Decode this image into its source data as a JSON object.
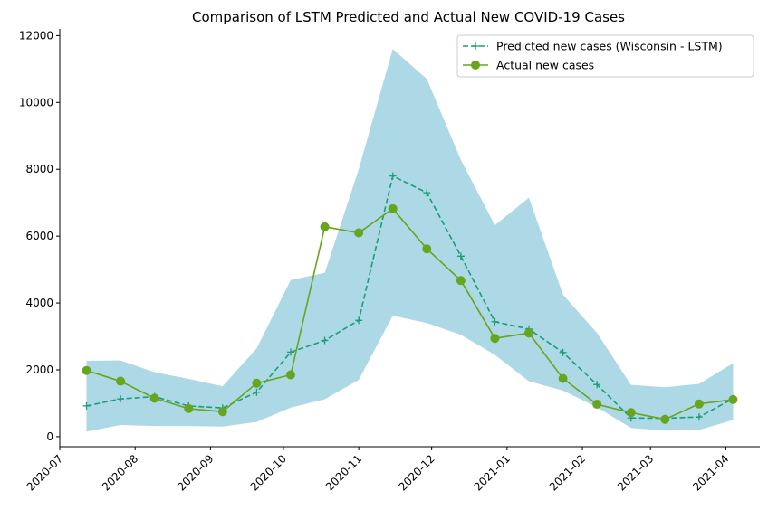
{
  "chart_data": {
    "type": "line",
    "title": "Comparison of LSTM Predicted and Actual New COVID-19 Cases",
    "xlabel": "",
    "ylabel": "",
    "ylim": [
      -300,
      12200
    ],
    "xlim": [
      "2020-07-01",
      "2021-04-15"
    ],
    "yticks": [
      0,
      2000,
      4000,
      6000,
      8000,
      10000,
      12000
    ],
    "xticks": [
      "2020-07-01",
      "2020-08-01",
      "2020-09-01",
      "2020-10-01",
      "2020-11-01",
      "2020-12-01",
      "2021-01-01",
      "2021-02-01",
      "2021-03-01",
      "2021-04-01"
    ],
    "xtick_labels": [
      "2020-07",
      "2020-08",
      "2020-09",
      "2020-10",
      "2020-11",
      "2020-12",
      "2021-01",
      "2021-02",
      "2021-03",
      "2021-04"
    ],
    "x": [
      "2020-07-12",
      "2020-07-26",
      "2020-08-09",
      "2020-08-23",
      "2020-09-06",
      "2020-09-20",
      "2020-10-04",
      "2020-10-18",
      "2020-11-01",
      "2020-11-15",
      "2020-11-29",
      "2020-12-13",
      "2020-12-27",
      "2021-01-10",
      "2021-01-24",
      "2021-02-07",
      "2021-02-21",
      "2021-03-07",
      "2021-03-21",
      "2021-04-04"
    ],
    "series": [
      {
        "name": "Predicted new cases (Wisconsin - LSTM)",
        "values": [
          920,
          1130,
          1200,
          920,
          860,
          1330,
          2530,
          2880,
          3480,
          7800,
          7300,
          5400,
          3440,
          3220,
          2520,
          1560,
          560,
          550,
          590,
          1140
        ],
        "color": "#1b9e77",
        "style": "dashed",
        "marker": "plus"
      },
      {
        "name": "Actual new cases",
        "values": [
          1980,
          1660,
          1150,
          840,
          750,
          1600,
          1850,
          6280,
          6100,
          6820,
          5620,
          4670,
          2940,
          3100,
          1740,
          970,
          720,
          520,
          980,
          1110
        ],
        "color": "#66a61e",
        "style": "solid",
        "marker": "circle"
      }
    ],
    "band": {
      "lower": [
        150,
        350,
        320,
        320,
        300,
        440,
        870,
        1120,
        1700,
        3620,
        3400,
        3050,
        2450,
        1660,
        1380,
        880,
        260,
        180,
        200,
        500
      ],
      "upper": [
        2270,
        2280,
        1930,
        1730,
        1510,
        2640,
        4690,
        4900,
        8000,
        11600,
        10700,
        8280,
        6330,
        7150,
        4250,
        3100,
        1550,
        1480,
        1580,
        2200
      ],
      "color": "#add8e6"
    },
    "legend": "top-right",
    "grid": false
  }
}
